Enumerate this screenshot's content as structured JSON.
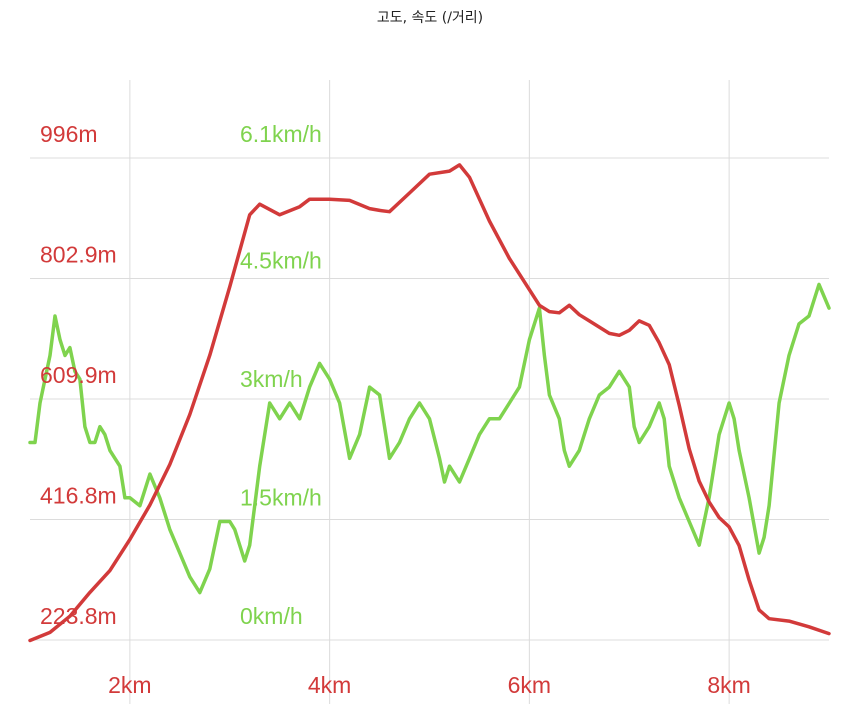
{
  "chart_data": {
    "type": "line",
    "title": "고도, 속도 (/거리)",
    "grid": true,
    "colors": {
      "altitude": "#d23a3a",
      "speed": "#7fd34e"
    },
    "x_unit": "km",
    "xlim": [
      1.0,
      9.0
    ],
    "x_ticks": [
      {
        "value": 2,
        "label": "2km"
      },
      {
        "value": 4,
        "label": "4km"
      },
      {
        "value": 6,
        "label": "6km"
      },
      {
        "value": 8,
        "label": "8km"
      }
    ],
    "altitude_axis": {
      "ylim": [
        223.8,
        996
      ],
      "ticks": [
        {
          "value": 996,
          "label": "996m"
        },
        {
          "value": 802.9,
          "label": "802.9m"
        },
        {
          "value": 609.9,
          "label": "609.9m"
        },
        {
          "value": 416.8,
          "label": "416.8m"
        },
        {
          "value": 223.8,
          "label": "223.8m"
        }
      ]
    },
    "speed_axis": {
      "ylim": [
        0,
        6.1
      ],
      "ticks": [
        {
          "value": 6.1,
          "label": "6.1km/h"
        },
        {
          "value": 4.5,
          "label": "4.5km/h"
        },
        {
          "value": 3,
          "label": "3km/h"
        },
        {
          "value": 1.5,
          "label": "1.5km/h"
        },
        {
          "value": 0,
          "label": "0km/h"
        }
      ]
    },
    "altitude": [
      [
        1.0,
        223
      ],
      [
        1.2,
        236
      ],
      [
        1.4,
        262
      ],
      [
        1.6,
        300
      ],
      [
        1.8,
        335
      ],
      [
        2.0,
        385
      ],
      [
        2.2,
        440
      ],
      [
        2.4,
        505
      ],
      [
        2.6,
        585
      ],
      [
        2.8,
        680
      ],
      [
        3.0,
        790
      ],
      [
        3.2,
        905
      ],
      [
        3.3,
        922
      ],
      [
        3.5,
        905
      ],
      [
        3.7,
        918
      ],
      [
        3.8,
        930
      ],
      [
        4.0,
        930
      ],
      [
        4.2,
        928
      ],
      [
        4.4,
        915
      ],
      [
        4.5,
        912
      ],
      [
        4.6,
        910
      ],
      [
        4.8,
        940
      ],
      [
        5.0,
        970
      ],
      [
        5.2,
        975
      ],
      [
        5.3,
        985
      ],
      [
        5.4,
        965
      ],
      [
        5.6,
        895
      ],
      [
        5.8,
        835
      ],
      [
        6.0,
        785
      ],
      [
        6.1,
        760
      ],
      [
        6.2,
        750
      ],
      [
        6.3,
        748
      ],
      [
        6.4,
        760
      ],
      [
        6.5,
        745
      ],
      [
        6.6,
        735
      ],
      [
        6.8,
        715
      ],
      [
        6.9,
        712
      ],
      [
        7.0,
        720
      ],
      [
        7.1,
        735
      ],
      [
        7.2,
        728
      ],
      [
        7.3,
        700
      ],
      [
        7.4,
        665
      ],
      [
        7.5,
        600
      ],
      [
        7.6,
        530
      ],
      [
        7.7,
        478
      ],
      [
        7.8,
        445
      ],
      [
        7.9,
        420
      ],
      [
        8.0,
        405
      ],
      [
        8.1,
        375
      ],
      [
        8.2,
        320
      ],
      [
        8.3,
        272
      ],
      [
        8.4,
        258
      ],
      [
        8.6,
        254
      ],
      [
        8.8,
        245
      ],
      [
        9.0,
        234
      ]
    ],
    "speed": [
      [
        1.0,
        2.5
      ],
      [
        1.05,
        2.5
      ],
      [
        1.1,
        3.0
      ],
      [
        1.15,
        3.3
      ],
      [
        1.2,
        3.6
      ],
      [
        1.25,
        4.1
      ],
      [
        1.3,
        3.8
      ],
      [
        1.35,
        3.6
      ],
      [
        1.4,
        3.7
      ],
      [
        1.45,
        3.4
      ],
      [
        1.5,
        3.3
      ],
      [
        1.55,
        2.7
      ],
      [
        1.6,
        2.5
      ],
      [
        1.65,
        2.5
      ],
      [
        1.7,
        2.7
      ],
      [
        1.75,
        2.6
      ],
      [
        1.8,
        2.4
      ],
      [
        1.85,
        2.3
      ],
      [
        1.9,
        2.2
      ],
      [
        1.95,
        1.8
      ],
      [
        2.0,
        1.8
      ],
      [
        2.1,
        1.7
      ],
      [
        2.2,
        2.1
      ],
      [
        2.3,
        1.8
      ],
      [
        2.4,
        1.4
      ],
      [
        2.5,
        1.1
      ],
      [
        2.6,
        0.8
      ],
      [
        2.7,
        0.6
      ],
      [
        2.8,
        0.9
      ],
      [
        2.9,
        1.5
      ],
      [
        3.0,
        1.5
      ],
      [
        3.05,
        1.4
      ],
      [
        3.15,
        1.0
      ],
      [
        3.2,
        1.2
      ],
      [
        3.3,
        2.2
      ],
      [
        3.4,
        3.0
      ],
      [
        3.5,
        2.8
      ],
      [
        3.6,
        3.0
      ],
      [
        3.7,
        2.8
      ],
      [
        3.8,
        3.2
      ],
      [
        3.9,
        3.5
      ],
      [
        4.0,
        3.3
      ],
      [
        4.1,
        3.0
      ],
      [
        4.2,
        2.3
      ],
      [
        4.3,
        2.6
      ],
      [
        4.4,
        3.2
      ],
      [
        4.5,
        3.1
      ],
      [
        4.6,
        2.3
      ],
      [
        4.7,
        2.5
      ],
      [
        4.8,
        2.8
      ],
      [
        4.9,
        3.0
      ],
      [
        5.0,
        2.8
      ],
      [
        5.1,
        2.3
      ],
      [
        5.15,
        2.0
      ],
      [
        5.2,
        2.2
      ],
      [
        5.3,
        2.0
      ],
      [
        5.4,
        2.3
      ],
      [
        5.5,
        2.6
      ],
      [
        5.6,
        2.8
      ],
      [
        5.7,
        2.8
      ],
      [
        5.8,
        3.0
      ],
      [
        5.9,
        3.2
      ],
      [
        6.0,
        3.8
      ],
      [
        6.1,
        4.2
      ],
      [
        6.15,
        3.6
      ],
      [
        6.2,
        3.1
      ],
      [
        6.3,
        2.8
      ],
      [
        6.35,
        2.4
      ],
      [
        6.4,
        2.2
      ],
      [
        6.5,
        2.4
      ],
      [
        6.6,
        2.8
      ],
      [
        6.7,
        3.1
      ],
      [
        6.8,
        3.2
      ],
      [
        6.9,
        3.4
      ],
      [
        7.0,
        3.2
      ],
      [
        7.05,
        2.7
      ],
      [
        7.1,
        2.5
      ],
      [
        7.2,
        2.7
      ],
      [
        7.3,
        3.0
      ],
      [
        7.35,
        2.8
      ],
      [
        7.4,
        2.2
      ],
      [
        7.5,
        1.8
      ],
      [
        7.6,
        1.5
      ],
      [
        7.7,
        1.2
      ],
      [
        7.8,
        1.8
      ],
      [
        7.9,
        2.6
      ],
      [
        8.0,
        3.0
      ],
      [
        8.05,
        2.8
      ],
      [
        8.1,
        2.4
      ],
      [
        8.2,
        1.8
      ],
      [
        8.3,
        1.1
      ],
      [
        8.35,
        1.3
      ],
      [
        8.4,
        1.7
      ],
      [
        8.5,
        3.0
      ],
      [
        8.6,
        3.6
      ],
      [
        8.7,
        4.0
      ],
      [
        8.8,
        4.1
      ],
      [
        8.9,
        4.5
      ],
      [
        9.0,
        4.2
      ]
    ]
  }
}
